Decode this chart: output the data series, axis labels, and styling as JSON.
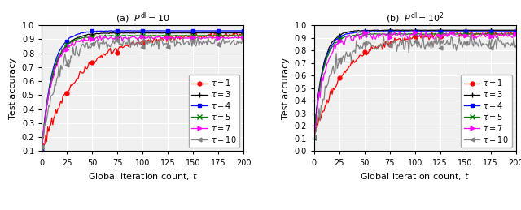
{
  "xlabel": "Global iteration count, $t$",
  "ylabel": "Test accuracy",
  "xlim": [
    0,
    200
  ],
  "ylim_a": [
    0.1,
    1.0
  ],
  "ylim_b": [
    0.0,
    1.0
  ],
  "xticks": [
    0,
    25,
    50,
    75,
    100,
    125,
    150,
    175,
    200
  ],
  "yticks_a": [
    0.1,
    0.2,
    0.3,
    0.4,
    0.5,
    0.6,
    0.7,
    0.8,
    0.9,
    1.0
  ],
  "yticks_b": [
    0.0,
    0.1,
    0.2,
    0.3,
    0.4,
    0.5,
    0.6,
    0.7,
    0.8,
    0.9,
    1.0
  ],
  "series": [
    {
      "label": "$\\tau = 1$",
      "color": "red",
      "marker": "o",
      "markersize": 3.5,
      "markevery": 25
    },
    {
      "label": "$\\tau = 3$",
      "color": "black",
      "marker": "+",
      "markersize": 5,
      "markevery": 25
    },
    {
      "label": "$\\tau = 4$",
      "color": "blue",
      "marker": "s",
      "markersize": 3.5,
      "markevery": 25
    },
    {
      "label": "$\\tau = 5$",
      "color": "green",
      "marker": "x",
      "markersize": 5,
      "markevery": 25
    },
    {
      "label": "$\\tau = 7$",
      "color": "magenta",
      "marker": ">",
      "markersize": 3.5,
      "markevery": 25
    },
    {
      "label": "$\\tau = 10$",
      "color": "gray",
      "marker": "<",
      "markersize": 3.5,
      "markevery": 25
    }
  ],
  "background_color": "#f0f0f0",
  "legend_fontsize": 7,
  "axis_fontsize": 8,
  "tick_fontsize": 7
}
